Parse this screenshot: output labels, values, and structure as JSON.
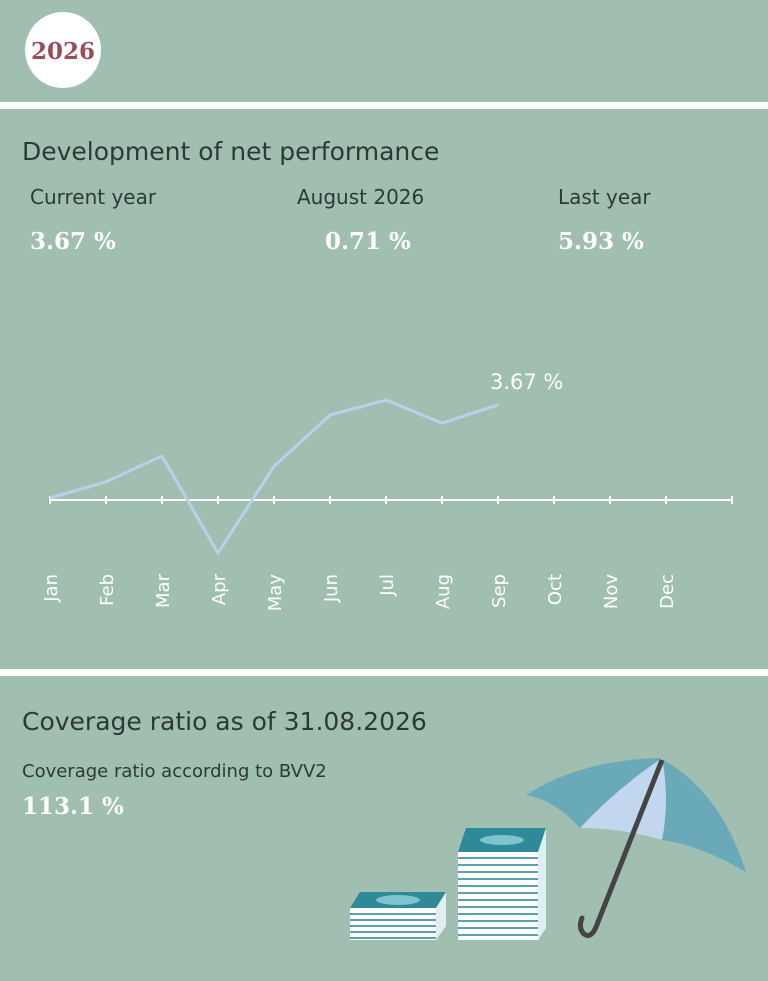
{
  "year": "2026",
  "performance": {
    "title": "Development of net performance",
    "stats": [
      {
        "label": "Current year",
        "value": "3.67 %"
      },
      {
        "label": "August 2026",
        "value": "0.71 %"
      },
      {
        "label": "Last year",
        "value": "5.93 %"
      }
    ]
  },
  "chart_data": {
    "type": "line",
    "categories": [
      "Jan",
      "Feb",
      "Mar",
      "Apr",
      "May",
      "Jun",
      "Jul",
      "Aug",
      "Sep",
      "Oct",
      "Nov",
      "Dec"
    ],
    "series": [
      {
        "color": "#bcd0ea",
        "values": [
          0.08,
          0.7,
          1.7,
          -2.05,
          1.3,
          3.28,
          3.86,
          2.97,
          3.67,
          null,
          null,
          null
        ],
        "value_labels": [
          null,
          null,
          null,
          null,
          null,
          null,
          null,
          null,
          "3.67 %",
          null,
          null,
          null
        ]
      }
    ]
  },
  "coverage": {
    "title": "Coverage ratio as of 31.08.2026",
    "label": "Coverage ratio according to BVV2",
    "value": "113.1 %"
  }
}
